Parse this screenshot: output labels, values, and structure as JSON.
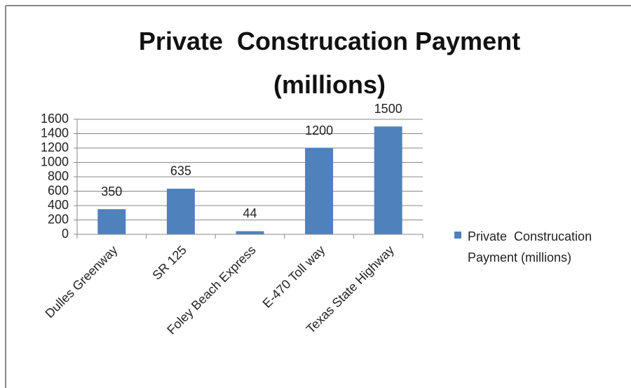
{
  "chart_data": {
    "type": "bar",
    "title": "Private  Construcation Payment (millions)",
    "categories": [
      "Dulles Greenway",
      "SR 125",
      "Foley Beach Express",
      "E-470 Toll way",
      "Texas State Highway"
    ],
    "series": [
      {
        "name": "Private  Construcation Payment (millions)",
        "color": "#4f81bd",
        "values": [
          350,
          635,
          44,
          1200,
          1500
        ]
      }
    ],
    "ylim": [
      0,
      1600
    ],
    "yticks": [
      0,
      200,
      400,
      600,
      800,
      1000,
      1200,
      1400,
      1600
    ],
    "grid": true,
    "legend": "right"
  }
}
